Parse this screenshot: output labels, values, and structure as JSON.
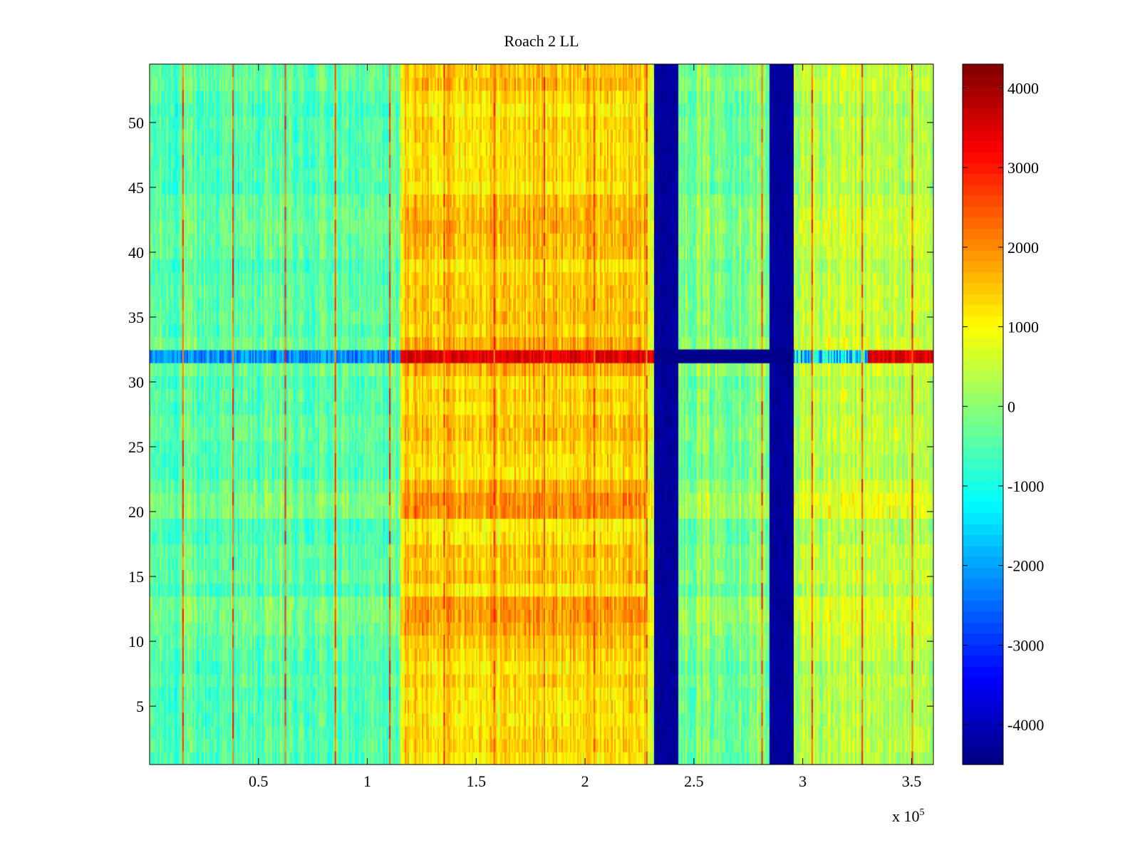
{
  "chart_data": {
    "type": "heatmap",
    "title": "Roach 2 LL",
    "xlabel": "",
    "ylabel": "",
    "x_multiplier_label": "x 10",
    "x_multiplier_exponent": "5",
    "xlim": [
      0,
      360000
    ],
    "ylim": [
      0.5,
      54.5
    ],
    "x_ticks": [
      50000,
      100000,
      150000,
      200000,
      250000,
      300000,
      350000
    ],
    "x_tick_labels": [
      "0.5",
      "1",
      "1.5",
      "2",
      "2.5",
      "3",
      "3.5"
    ],
    "y_ticks": [
      5,
      10,
      15,
      20,
      25,
      30,
      35,
      40,
      45,
      50
    ],
    "y_tick_labels": [
      "5",
      "10",
      "15",
      "20",
      "25",
      "30",
      "35",
      "40",
      "45",
      "50"
    ],
    "colormap": "jet",
    "color_range": [
      -4500,
      4300
    ],
    "colorbar_ticks": [
      4000,
      3000,
      2000,
      1000,
      0,
      -1000,
      -2000,
      -3000,
      -4000
    ],
    "colorbar_tick_labels": [
      "4000",
      "3000",
      "2000",
      "1000",
      "0",
      "-1000",
      "-2000",
      "-3000",
      "-4000"
    ],
    "rows": 54,
    "band_profile": [
      {
        "x_start": 0,
        "x_end": 115000,
        "value": -500
      },
      {
        "x_start": 115000,
        "x_end": 228000,
        "value": 1400
      },
      {
        "x_start": 228000,
        "x_end": 232000,
        "value": 800
      },
      {
        "x_start": 232000,
        "x_end": 243000,
        "value": -4400
      },
      {
        "x_start": 243000,
        "x_end": 285000,
        "value": -100
      },
      {
        "x_start": 285000,
        "x_end": 296000,
        "value": -4400
      },
      {
        "x_start": 296000,
        "x_end": 360000,
        "value": 400
      }
    ],
    "vertical_spike_lines_x": [
      15000,
      38000,
      62000,
      85000,
      110000,
      135000,
      158000,
      181000,
      204000,
      228000,
      281000,
      304000,
      327000,
      350000
    ],
    "vertical_spike_value": 3200,
    "bright_rows": [
      12,
      21,
      32,
      42
    ],
    "anomalous_row": {
      "row": 32,
      "low_segment_value": -2200,
      "high_segment_value": 3900
    }
  }
}
